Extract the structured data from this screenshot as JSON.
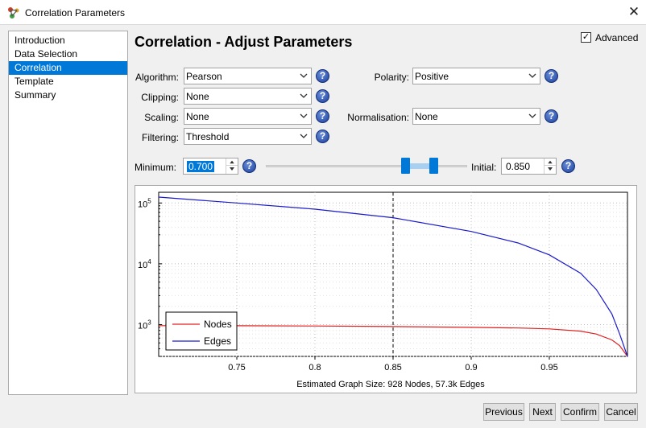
{
  "window": {
    "title": "Correlation Parameters"
  },
  "nav": {
    "items": [
      {
        "label": "Introduction",
        "selected": false
      },
      {
        "label": "Data Selection",
        "selected": false
      },
      {
        "label": "Correlation",
        "selected": true
      },
      {
        "label": "Template",
        "selected": false
      },
      {
        "label": "Summary",
        "selected": false
      }
    ]
  },
  "page": {
    "heading": "Correlation - Adjust Parameters"
  },
  "advanced": {
    "label": "Advanced",
    "checked": true
  },
  "fields": {
    "algorithm": {
      "label": "Algorithm:",
      "value": "Pearson"
    },
    "clipping": {
      "label": "Clipping:",
      "value": "None"
    },
    "scaling": {
      "label": "Scaling:",
      "value": "None"
    },
    "filtering": {
      "label": "Filtering:",
      "value": "Threshold"
    },
    "polarity": {
      "label": "Polarity:",
      "value": "Positive"
    },
    "normalisation": {
      "label": "Normalisation:",
      "value": "None"
    }
  },
  "threshold": {
    "minimum_label": "Minimum:",
    "minimum_value": "0.700",
    "initial_label": "Initial:",
    "initial_value": "0.850",
    "slider_low": 0.7,
    "slider_high": 0.85
  },
  "chart_data": {
    "type": "line",
    "title": "",
    "xlabel": "Estimated Graph Size: 928 Nodes, 57.3k Edges",
    "ylabel": "",
    "xlim": [
      0.7,
      1.0
    ],
    "ylim": [
      300,
      150000
    ],
    "yscale": "log",
    "grid": true,
    "x_ticks": [
      0.75,
      0.8,
      0.85,
      0.9,
      0.95
    ],
    "x_tick_labels": [
      "0.75",
      "0.8",
      "0.85",
      "0.9",
      "0.95"
    ],
    "y_ticks": [
      1000,
      10000,
      100000
    ],
    "y_tick_labels": [
      {
        "base": "10",
        "exp": "3"
      },
      {
        "base": "10",
        "exp": "4"
      },
      {
        "base": "10",
        "exp": "5"
      }
    ],
    "marker_x": 0.85,
    "legend_position": "bottom-left",
    "x": [
      0.7,
      0.75,
      0.8,
      0.85,
      0.9,
      0.93,
      0.95,
      0.97,
      0.98,
      0.99,
      0.995,
      1.0
    ],
    "series": [
      {
        "name": "Nodes",
        "color": "#e02020",
        "values": [
          960,
          958,
          950,
          928,
          900,
          880,
          850,
          780,
          700,
          560,
          450,
          300
        ]
      },
      {
        "name": "Edges",
        "color": "#1a1acc",
        "values": [
          125000,
          100000,
          79000,
          57300,
          34000,
          22000,
          14000,
          7000,
          3800,
          1500,
          700,
          300
        ]
      }
    ]
  },
  "buttons": {
    "previous": "Previous",
    "next": "Next",
    "confirm": "Confirm",
    "cancel": "Cancel"
  },
  "icons": {
    "app": "app-icon",
    "close": "close-icon",
    "help": "help-icon",
    "dropdown": "chevron-down-icon"
  },
  "colors": {
    "accent": "#0078d7",
    "nodes": "#e02020",
    "edges": "#1a1acc"
  }
}
